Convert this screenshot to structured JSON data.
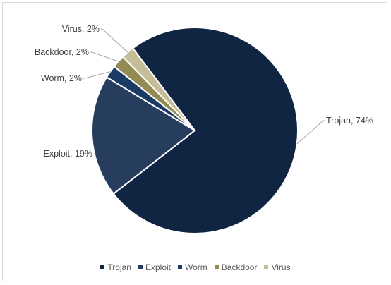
{
  "chart_data": {
    "type": "pie",
    "title": "",
    "slices": [
      {
        "label": "Trojan",
        "value": 74,
        "data_label": "Trojan, 74%",
        "color": "#0f2542"
      },
      {
        "label": "Exploit",
        "value": 19,
        "data_label": "Exploit, 19%",
        "color": "#273d5e"
      },
      {
        "label": "Worm",
        "value": 2,
        "data_label": "Worm, 2%",
        "color": "#1b3a64"
      },
      {
        "label": "Backdoor",
        "value": 2,
        "data_label": "Backdoor, 2%",
        "color": "#948a54"
      },
      {
        "label": "Virus",
        "value": 2,
        "data_label": "Virus, 2%",
        "color": "#c4bd97"
      }
    ],
    "legend_position": "bottom"
  }
}
